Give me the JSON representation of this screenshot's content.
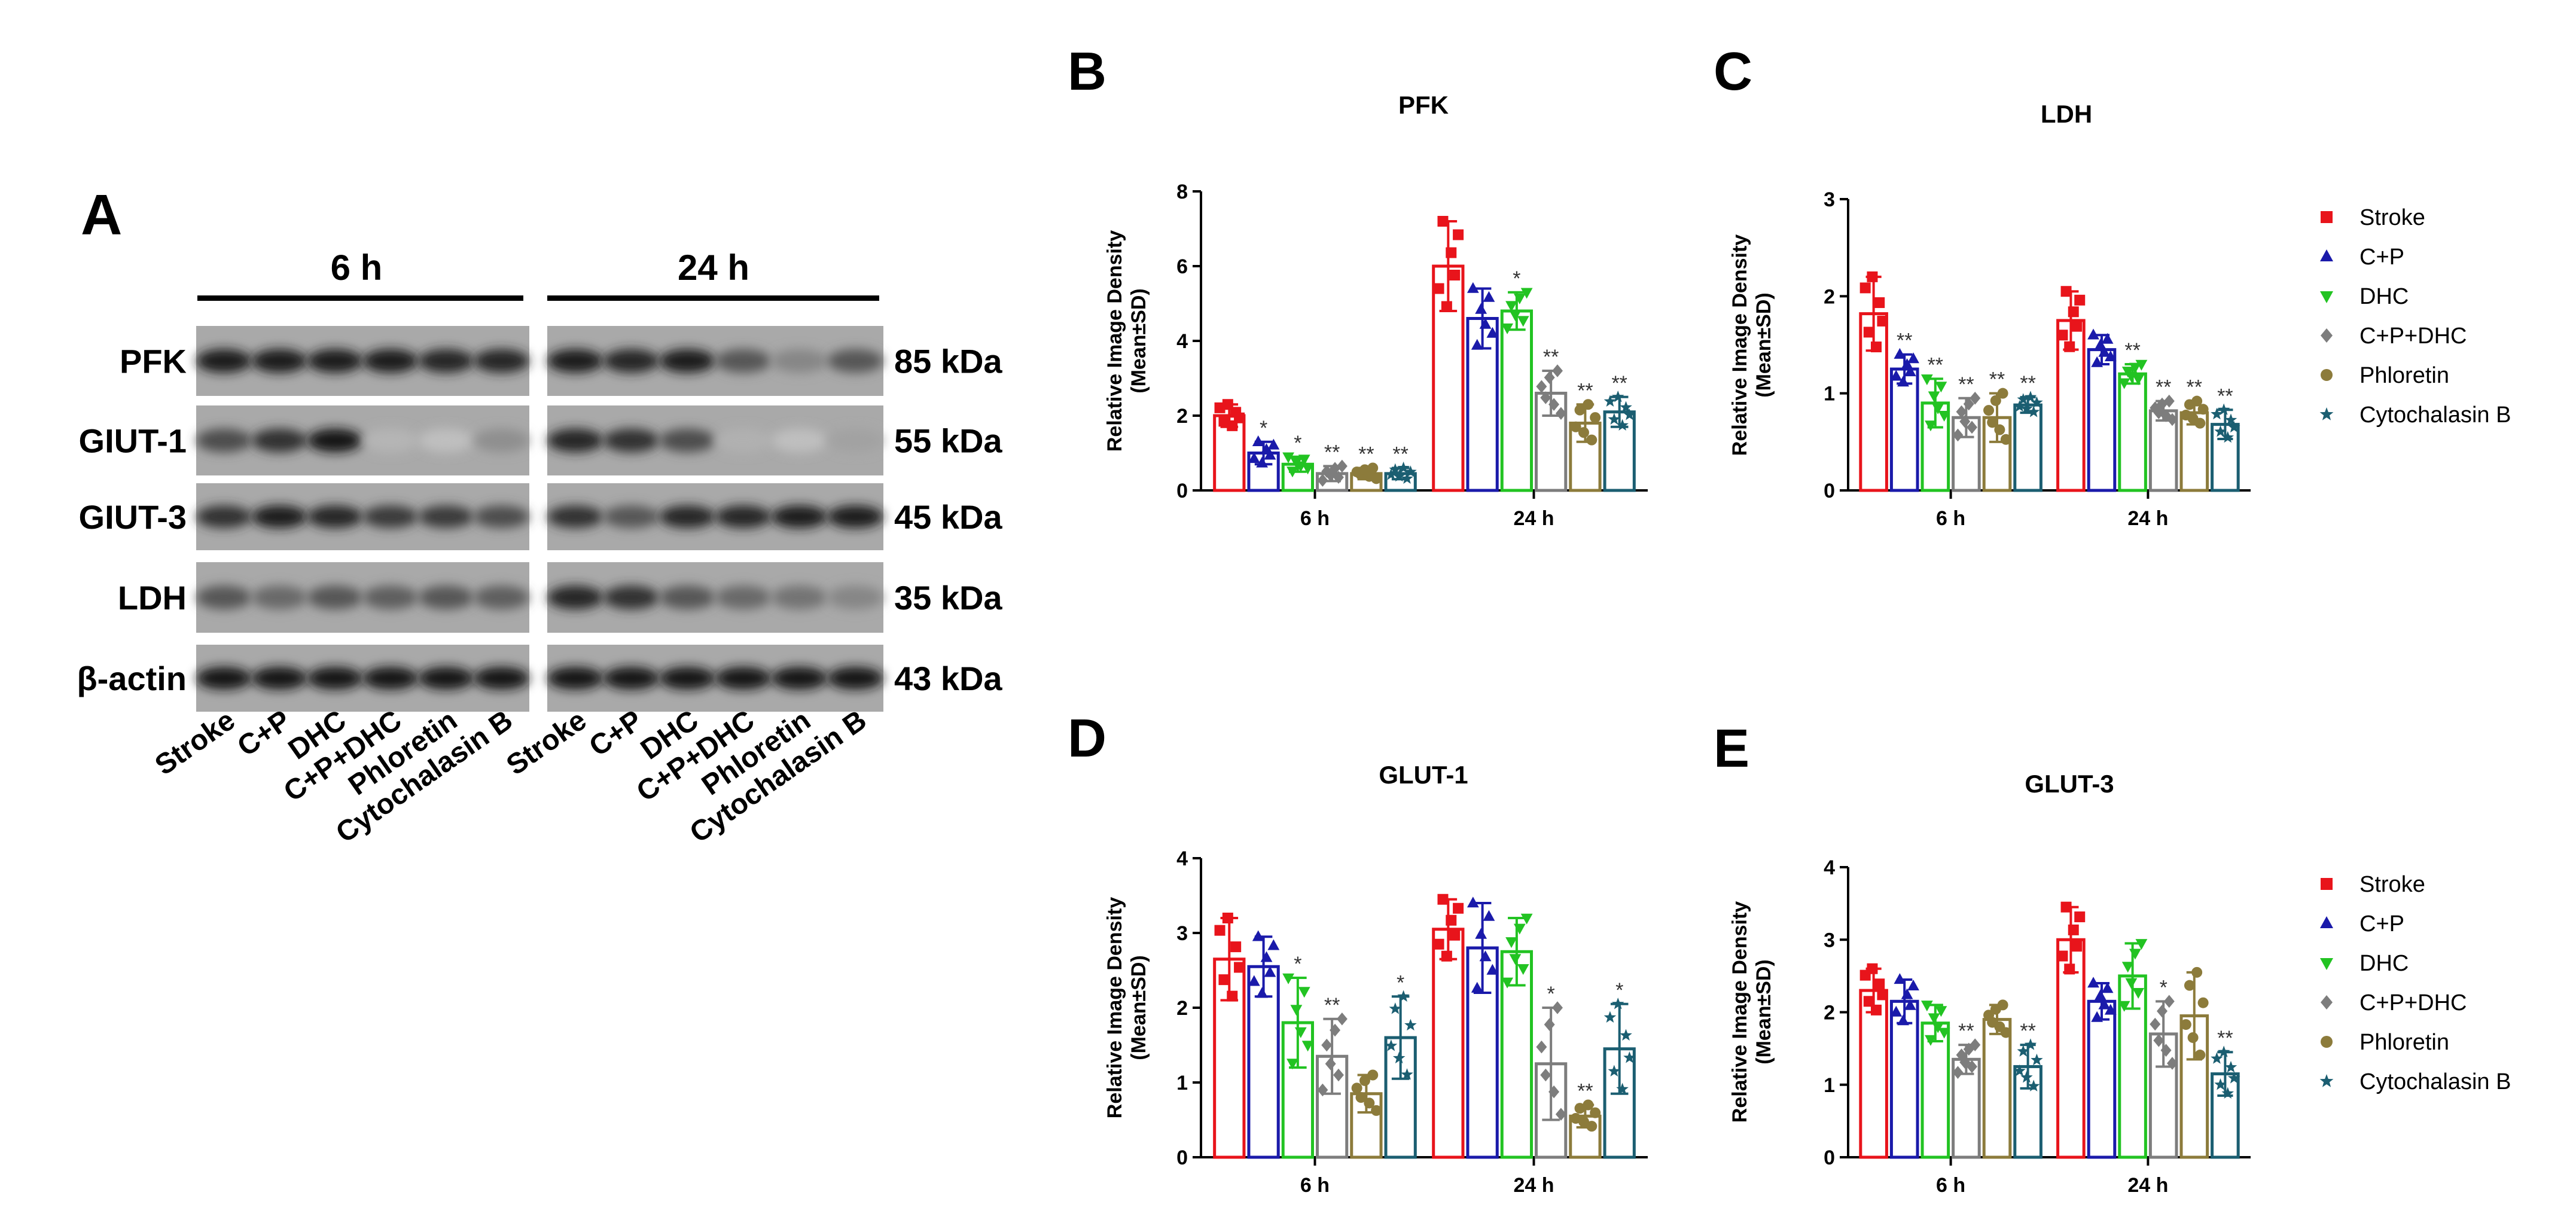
{
  "western_blot": {
    "panel_letter": "A",
    "time_groups": [
      "6 h",
      "24 h"
    ],
    "proteins": [
      {
        "name": "PFK",
        "size": "85 kDa"
      },
      {
        "name": "GIUT-1",
        "size": "55 kDa"
      },
      {
        "name": "GIUT-3",
        "size": "45 kDa"
      },
      {
        "name": "LDH",
        "size": "35 kDa"
      },
      {
        "name": "β-actin",
        "size": "43 kDa"
      }
    ],
    "lane_labels": [
      "Stroke",
      "C+P",
      "DHC",
      "C+P+DHC",
      "Phloretin",
      "Cytochalasin B"
    ],
    "band_intensity": [
      [
        [
          0.9,
          0.9,
          0.9,
          0.9,
          0.85,
          0.85
        ],
        [
          0.9,
          0.85,
          0.9,
          0.6,
          0.35,
          0.6
        ]
      ],
      [
        [
          0.65,
          0.8,
          0.95,
          0.1,
          0.05,
          0.3
        ],
        [
          0.85,
          0.8,
          0.65,
          0.12,
          0.05,
          0.2
        ]
      ],
      [
        [
          0.8,
          0.9,
          0.85,
          0.75,
          0.75,
          0.65
        ],
        [
          0.8,
          0.6,
          0.85,
          0.85,
          0.9,
          0.9
        ]
      ],
      [
        [
          0.6,
          0.5,
          0.6,
          0.55,
          0.6,
          0.55
        ],
        [
          0.85,
          0.8,
          0.6,
          0.5,
          0.45,
          0.35
        ]
      ],
      [
        [
          0.95,
          0.95,
          0.95,
          0.95,
          0.95,
          0.95
        ],
        [
          0.95,
          0.95,
          0.95,
          0.95,
          0.95,
          0.95
        ]
      ]
    ]
  },
  "legend": {
    "entries": [
      "Stroke",
      "C+P",
      "DHC",
      "C+P+DHC",
      "Phloretin",
      "Cytochalasin B"
    ],
    "markers": [
      "square",
      "triangle-up",
      "triangle-down",
      "diamond",
      "circle",
      "star"
    ],
    "colors": [
      "#e8141b",
      "#1a1aaa",
      "#22c322",
      "#7d7d7d",
      "#8c7b3b",
      "#1b5e71"
    ]
  },
  "chart_data": [
    {
      "panel": "B",
      "type": "bar",
      "title": "PFK",
      "ylabel": [
        "Relative Image Density",
        "(Mean±SD)"
      ],
      "categories": [
        "6 h",
        "24 h"
      ],
      "ylim": [
        0,
        8
      ],
      "yticks": [
        0,
        2,
        4,
        6,
        8
      ],
      "series": [
        {
          "name": "Stroke",
          "values": [
            2.0,
            6.0
          ],
          "sd": [
            0.3,
            1.2
          ],
          "sig": [
            "",
            ""
          ]
        },
        {
          "name": "C+P",
          "values": [
            1.0,
            4.6
          ],
          "sd": [
            0.3,
            0.8
          ],
          "sig": [
            "*",
            ""
          ]
        },
        {
          "name": "DHC",
          "values": [
            0.7,
            4.8
          ],
          "sd": [
            0.2,
            0.5
          ],
          "sig": [
            "*",
            "*"
          ]
        },
        {
          "name": "C+P+DHC",
          "values": [
            0.45,
            2.6
          ],
          "sd": [
            0.2,
            0.6
          ],
          "sig": [
            "**",
            "**"
          ]
        },
        {
          "name": "Phloretin",
          "values": [
            0.45,
            1.8
          ],
          "sd": [
            0.15,
            0.5
          ],
          "sig": [
            "**",
            "**"
          ]
        },
        {
          "name": "Cytochalasin B",
          "values": [
            0.45,
            2.1
          ],
          "sd": [
            0.15,
            0.4
          ],
          "sig": [
            "**",
            "**"
          ]
        }
      ]
    },
    {
      "panel": "C",
      "type": "bar",
      "title": "LDH",
      "ylabel": [
        "Relative Image Density",
        "(Mean±SD)"
      ],
      "categories": [
        "6 h",
        "24 h"
      ],
      "ylim": [
        0,
        3
      ],
      "yticks": [
        0,
        1,
        2,
        3
      ],
      "series": [
        {
          "name": "Stroke",
          "values": [
            1.82,
            1.75
          ],
          "sd": [
            0.38,
            0.3
          ],
          "sig": [
            "",
            ""
          ]
        },
        {
          "name": "C+P",
          "values": [
            1.25,
            1.45
          ],
          "sd": [
            0.15,
            0.15
          ],
          "sig": [
            "**",
            ""
          ]
        },
        {
          "name": "DHC",
          "values": [
            0.9,
            1.2
          ],
          "sd": [
            0.25,
            0.1
          ],
          "sig": [
            "**",
            "**"
          ]
        },
        {
          "name": "C+P+DHC",
          "values": [
            0.75,
            0.82
          ],
          "sd": [
            0.2,
            0.1
          ],
          "sig": [
            "**",
            "**"
          ]
        },
        {
          "name": "Phloretin",
          "values": [
            0.75,
            0.8
          ],
          "sd": [
            0.25,
            0.12
          ],
          "sig": [
            "**",
            "**"
          ]
        },
        {
          "name": "Cytochalasin B",
          "values": [
            0.88,
            0.68
          ],
          "sd": [
            0.08,
            0.15
          ],
          "sig": [
            "**",
            "**"
          ]
        }
      ]
    },
    {
      "panel": "D",
      "type": "bar",
      "title": "GLUT-1",
      "ylabel": [
        "Relative Image Density",
        "(Mean±SD)"
      ],
      "categories": [
        "6 h",
        "24 h"
      ],
      "ylim": [
        0,
        4
      ],
      "yticks": [
        0,
        1,
        2,
        3,
        4
      ],
      "series": [
        {
          "name": "Stroke",
          "values": [
            2.65,
            3.05
          ],
          "sd": [
            0.55,
            0.4
          ],
          "sig": [
            "",
            ""
          ]
        },
        {
          "name": "C+P",
          "values": [
            2.55,
            2.8
          ],
          "sd": [
            0.4,
            0.6
          ],
          "sig": [
            "",
            ""
          ]
        },
        {
          "name": "DHC",
          "values": [
            1.8,
            2.75
          ],
          "sd": [
            0.6,
            0.45
          ],
          "sig": [
            "*",
            ""
          ]
        },
        {
          "name": "C+P+DHC",
          "values": [
            1.35,
            1.25
          ],
          "sd": [
            0.5,
            0.75
          ],
          "sig": [
            "**",
            "*"
          ]
        },
        {
          "name": "Phloretin",
          "values": [
            0.85,
            0.55
          ],
          "sd": [
            0.25,
            0.15
          ],
          "sig": [
            "",
            "**"
          ]
        },
        {
          "name": "Cytochalasin B",
          "values": [
            1.6,
            1.45
          ],
          "sd": [
            0.55,
            0.6
          ],
          "sig": [
            "*",
            "*"
          ]
        }
      ]
    },
    {
      "panel": "E",
      "type": "bar",
      "title": "GLUT-3",
      "ylabel": [
        "Relative Image Density",
        "(Mean±SD)"
      ],
      "categories": [
        "6 h",
        "24 h"
      ],
      "ylim": [
        0,
        4
      ],
      "yticks": [
        0,
        1,
        2,
        3,
        4
      ],
      "series": [
        {
          "name": "Stroke",
          "values": [
            2.3,
            3.0
          ],
          "sd": [
            0.3,
            0.45
          ],
          "sig": [
            "",
            ""
          ]
        },
        {
          "name": "C+P",
          "values": [
            2.15,
            2.15
          ],
          "sd": [
            0.3,
            0.25
          ],
          "sig": [
            "",
            ""
          ]
        },
        {
          "name": "DHC",
          "values": [
            1.85,
            2.5
          ],
          "sd": [
            0.25,
            0.45
          ],
          "sig": [
            "",
            ""
          ]
        },
        {
          "name": "C+P+DHC",
          "values": [
            1.35,
            1.7
          ],
          "sd": [
            0.2,
            0.45
          ],
          "sig": [
            "**",
            "*"
          ]
        },
        {
          "name": "Phloretin",
          "values": [
            1.9,
            1.95
          ],
          "sd": [
            0.2,
            0.6
          ],
          "sig": [
            "",
            ""
          ]
        },
        {
          "name": "Cytochalasin B",
          "values": [
            1.25,
            1.15
          ],
          "sd": [
            0.3,
            0.3
          ],
          "sig": [
            "**",
            "**"
          ]
        }
      ]
    }
  ]
}
